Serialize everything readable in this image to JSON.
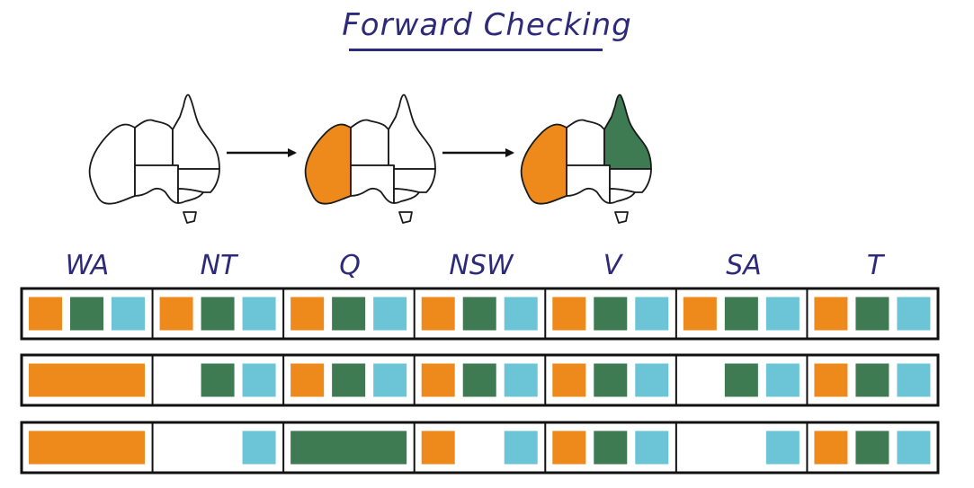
{
  "title": "Forward Checking",
  "colors": {
    "red": "#ee8a1c",
    "green": "#3e7a52",
    "blue": "#6cc5d6",
    "ink": "#2e2a7a"
  },
  "domain_values": [
    "red",
    "green",
    "blue"
  ],
  "variables": [
    "WA",
    "NT",
    "Q",
    "NSW",
    "V",
    "SA",
    "T"
  ],
  "maps": [
    {
      "assigned": {}
    },
    {
      "assigned": {
        "WA": "red"
      }
    },
    {
      "assigned": {
        "WA": "red",
        "Q": "green"
      }
    }
  ],
  "rows": [
    {
      "WA": [
        "red",
        "green",
        "blue"
      ],
      "NT": [
        "red",
        "green",
        "blue"
      ],
      "Q": [
        "red",
        "green",
        "blue"
      ],
      "NSW": [
        "red",
        "green",
        "blue"
      ],
      "V": [
        "red",
        "green",
        "blue"
      ],
      "SA": [
        "red",
        "green",
        "blue"
      ],
      "T": [
        "red",
        "green",
        "blue"
      ],
      "assigned": {}
    },
    {
      "WA": [
        "red"
      ],
      "NT": [
        "green",
        "blue"
      ],
      "Q": [
        "red",
        "green",
        "blue"
      ],
      "NSW": [
        "red",
        "green",
        "blue"
      ],
      "V": [
        "red",
        "green",
        "blue"
      ],
      "SA": [
        "green",
        "blue"
      ],
      "T": [
        "red",
        "green",
        "blue"
      ],
      "assigned": {
        "WA": "red"
      }
    },
    {
      "WA": [
        "red"
      ],
      "NT": [
        "blue"
      ],
      "Q": [
        "green"
      ],
      "NSW": [
        "red",
        "blue"
      ],
      "V": [
        "red",
        "green",
        "blue"
      ],
      "SA": [
        "blue"
      ],
      "T": [
        "red",
        "green",
        "blue"
      ],
      "assigned": {
        "WA": "red",
        "Q": "green"
      }
    }
  ]
}
